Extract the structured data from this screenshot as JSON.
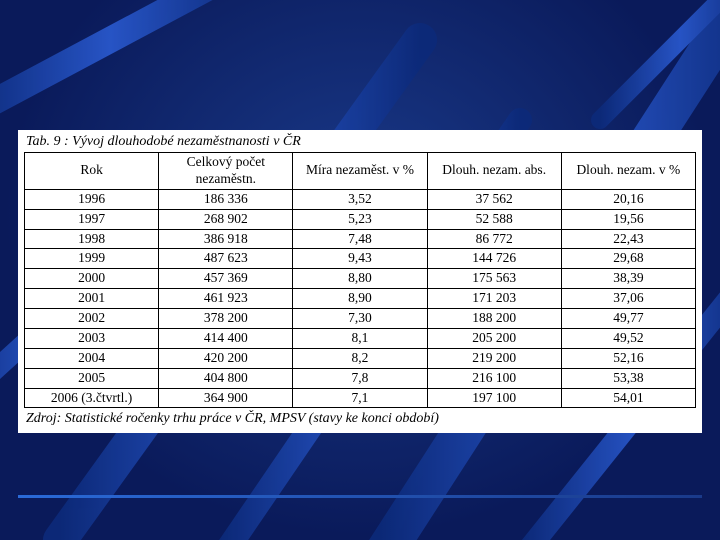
{
  "slide": {
    "title": "Tab. 9 : Vývoj dlouhodobé nezaměstnanosti v ČR",
    "source": "Zdroj: Statistické ročenky trhu práce v ČR, MPSV (stavy ke konci období)"
  },
  "table": {
    "type": "table",
    "background_color": "#ffffff",
    "text_color": "#000000",
    "border_color": "#000000",
    "columns": [
      {
        "key": "year",
        "label": "Rok"
      },
      {
        "key": "total",
        "label": "Celkový počet nezaměstn."
      },
      {
        "key": "rate",
        "label": "Míra nezaměst. v %"
      },
      {
        "key": "long_abs",
        "label": "Dlouh. nezam. abs."
      },
      {
        "key": "long_pct",
        "label": "Dlouh. nezam. v %"
      }
    ],
    "rows": [
      {
        "year": "1996",
        "total": "186 336",
        "rate": "3,52",
        "long_abs": "37 562",
        "long_pct": "20,16"
      },
      {
        "year": "1997",
        "total": "268 902",
        "rate": "5,23",
        "long_abs": "52 588",
        "long_pct": "19,56"
      },
      {
        "year": "1998",
        "total": "386 918",
        "rate": "7,48",
        "long_abs": "86 772",
        "long_pct": "22,43"
      },
      {
        "year": "1999",
        "total": "487 623",
        "rate": "9,43",
        "long_abs": "144 726",
        "long_pct": "29,68"
      },
      {
        "year": "2000",
        "total": "457 369",
        "rate": "8,80",
        "long_abs": "175 563",
        "long_pct": "38,39"
      },
      {
        "year": "2001",
        "total": "461 923",
        "rate": "8,90",
        "long_abs": "171 203",
        "long_pct": "37,06"
      },
      {
        "year": "2002",
        "total": "378 200",
        "rate": "7,30",
        "long_abs": "188 200",
        "long_pct": "49,77"
      },
      {
        "year": "2003",
        "total": "414 400",
        "rate": "8,1",
        "long_abs": "205 200",
        "long_pct": "49,52"
      },
      {
        "year": "2004",
        "total": "420 200",
        "rate": "8,2",
        "long_abs": "219 200",
        "long_pct": "52,16"
      },
      {
        "year": "2005",
        "total": "404 800",
        "rate": "7,8",
        "long_abs": "216 100",
        "long_pct": "53,38"
      },
      {
        "year": "2006 (3.čtvrtl.)",
        "total": "364 900",
        "rate": "7,1",
        "long_abs": "197 100",
        "long_pct": "54,01"
      }
    ]
  },
  "style": {
    "slide_bg_inner": "#1a3a8a",
    "slide_bg_outer": "#0a1a5a",
    "streak_color": "#0c2a7a",
    "streak_highlight": "#3a6ad8",
    "font_family": "Times New Roman",
    "title_fontsize_pt": 11,
    "cell_fontsize_pt": 10,
    "italic_title": true
  }
}
